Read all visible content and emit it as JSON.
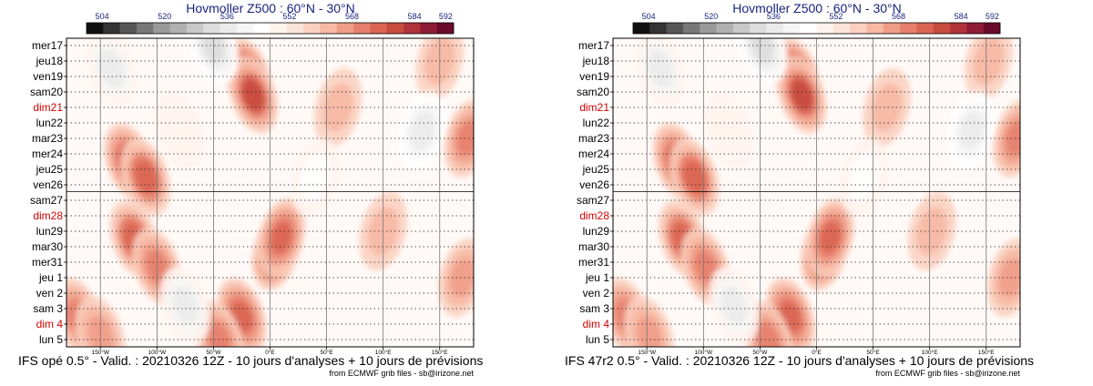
{
  "chart_data": [
    {
      "type": "heatmap",
      "title": "Hovmoller Z500 : 60°N - 30°N",
      "caption": "IFS opé 0.5° - Valid. : 20210326 12Z - 10 jours d'analyses + 10 jours de prévisions",
      "source": "from ECMWF grib files - sb@irizone.net"
    },
    {
      "type": "heatmap",
      "title": "Hovmoller Z500 : 60°N - 30°N",
      "caption": "IFS 47r2 0.5° - Valid. : 20210326 12Z - 10 jours d'analyses + 10 jours de prévisions",
      "source": "from ECMWF grib files - sb@irizone.net"
    }
  ],
  "shared": {
    "colorbar": {
      "min": 500,
      "max": 594,
      "tick_values": [
        504,
        520,
        536,
        552,
        568,
        584,
        592
      ],
      "tick_labels": [
        "504",
        "520",
        "536",
        "552",
        "568",
        "584",
        "592"
      ],
      "colors": [
        "#111111",
        "#333333",
        "#555555",
        "#777777",
        "#999999",
        "#b0b0b0",
        "#c8c8c8",
        "#dddddd",
        "#ebebeb",
        "#f6f6f6",
        "#ffffff",
        "#fff3ee",
        "#fde4da",
        "#fbd0c0",
        "#f7b8a4",
        "#f09d88",
        "#e6806c",
        "#d96552",
        "#c74b3e",
        "#b0333a",
        "#8f1c35",
        "#6b0b2c"
      ]
    },
    "days": [
      {
        "label": "mer17",
        "weekend": false
      },
      {
        "label": "jeu18",
        "weekend": false
      },
      {
        "label": "ven19",
        "weekend": false
      },
      {
        "label": "sam20",
        "weekend": false
      },
      {
        "label": "dim21",
        "weekend": true
      },
      {
        "label": "lun22",
        "weekend": false
      },
      {
        "label": "mar23",
        "weekend": false
      },
      {
        "label": "mer24",
        "weekend": false
      },
      {
        "label": "jeu25",
        "weekend": false
      },
      {
        "label": "ven26",
        "weekend": false
      },
      {
        "label": "sam27",
        "weekend": false
      },
      {
        "label": "dim28",
        "weekend": true
      },
      {
        "label": "lun29",
        "weekend": false
      },
      {
        "label": "mar30",
        "weekend": false
      },
      {
        "label": "mer31",
        "weekend": false
      },
      {
        "label": "jeu 1",
        "weekend": false
      },
      {
        "label": "ven 2",
        "weekend": false
      },
      {
        "label": "sam 3",
        "weekend": false
      },
      {
        "label": "dim 4",
        "weekend": true
      },
      {
        "label": "lun 5",
        "weekend": false
      }
    ],
    "analysis_boundary_index": 10,
    "longitude": {
      "min": -180,
      "max": 180,
      "ticks": [
        -150,
        -100,
        -50,
        0,
        50,
        100,
        150
      ],
      "tick_labels": [
        "150°W",
        "100°W",
        "50°W",
        "0°E",
        "50°E",
        "100°E",
        "150°E"
      ]
    },
    "anomalies": [
      {
        "lon": -125,
        "day": 7.5,
        "value": 576
      },
      {
        "lon": -110,
        "day": 8.5,
        "value": 574
      },
      {
        "lon": -20,
        "day": 2.0,
        "value": 582
      },
      {
        "lon": -15,
        "day": 3.2,
        "value": 578
      },
      {
        "lon": 5,
        "day": 13.3,
        "value": 584
      },
      {
        "lon": 10,
        "day": 12.4,
        "value": 576
      },
      {
        "lon": -120,
        "day": 12.5,
        "value": 574
      },
      {
        "lon": -100,
        "day": 14.3,
        "value": 572
      },
      {
        "lon": -170,
        "day": 17.5,
        "value": 572
      },
      {
        "lon": -150,
        "day": 18.7,
        "value": 568
      },
      {
        "lon": -25,
        "day": 17.5,
        "value": 576
      },
      {
        "lon": -45,
        "day": 19.0,
        "value": 572
      },
      {
        "lon": 175,
        "day": 6.0,
        "value": 570
      },
      {
        "lon": 170,
        "day": 15.0,
        "value": 568
      },
      {
        "lon": 60,
        "day": 4.0,
        "value": 562
      },
      {
        "lon": 100,
        "day": 12.0,
        "value": 562
      },
      {
        "lon": 150,
        "day": 1.0,
        "value": 560
      },
      {
        "lon": -50,
        "day": 0.0,
        "value": 530
      },
      {
        "lon": -140,
        "day": 1.5,
        "value": 538
      },
      {
        "lon": 135,
        "day": 5.5,
        "value": 536
      },
      {
        "lon": -75,
        "day": 16.8,
        "value": 538
      },
      {
        "lon": 40,
        "day": 8.5,
        "value": 544
      },
      {
        "lon": -80,
        "day": 5.5,
        "value": 548
      }
    ]
  }
}
